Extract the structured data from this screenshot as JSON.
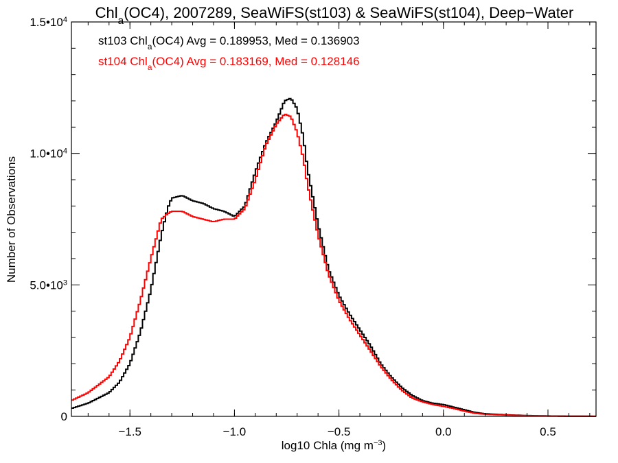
{
  "chart_data": {
    "type": "histogram",
    "title": {
      "pre": "Chl",
      "sub": "a",
      "post": "(OC4), 2007289, SeaWiFS(st103) & SeaWiFS(st104), Deep−Water"
    },
    "xlabel": {
      "text": "log10 Chla (mg m",
      "sup": "−3",
      "close": ")"
    },
    "ylabel": "Number of Observations",
    "xlim": [
      -1.78,
      0.73
    ],
    "ylim": [
      0,
      15000
    ],
    "x_ticks": [
      {
        "value": -1.5,
        "label": "−1.5"
      },
      {
        "value": -1.0,
        "label": "−1.0"
      },
      {
        "value": -0.5,
        "label": "−0.5"
      },
      {
        "value": 0.0,
        "label": "0.0"
      },
      {
        "value": 0.5,
        "label": "0.5"
      }
    ],
    "y_ticks": [
      {
        "value": 0,
        "label": "0",
        "exp": ""
      },
      {
        "value": 5000,
        "label": "5.0•10",
        "exp": "3"
      },
      {
        "value": 10000,
        "label": "1.0•10",
        "exp": "4"
      },
      {
        "value": 15000,
        "label": "1.5•10",
        "exp": "4"
      }
    ],
    "series": [
      {
        "name": "st103",
        "legend": {
          "pre": "st103 Chl",
          "sub": "a",
          "post": "(OC4) Avg = 0.189953, Med = 0.136903"
        },
        "color": "#000000",
        "x": [
          -1.78,
          -1.7,
          -1.6,
          -1.55,
          -1.5,
          -1.45,
          -1.4,
          -1.35,
          -1.32,
          -1.3,
          -1.25,
          -1.2,
          -1.15,
          -1.1,
          -1.05,
          -1.0,
          -0.95,
          -0.9,
          -0.85,
          -0.8,
          -0.76,
          -0.73,
          -0.7,
          -0.67,
          -0.65,
          -0.6,
          -0.55,
          -0.5,
          -0.45,
          -0.4,
          -0.35,
          -0.3,
          -0.25,
          -0.2,
          -0.15,
          -0.1,
          -0.05,
          0.0,
          0.05,
          0.1,
          0.15,
          0.2,
          0.3,
          0.4,
          0.5,
          0.6,
          0.73
        ],
        "y": [
          300,
          500,
          900,
          1300,
          2000,
          3200,
          4800,
          6900,
          7900,
          8300,
          8400,
          8200,
          8100,
          7900,
          7800,
          7600,
          8000,
          9300,
          10400,
          11200,
          12000,
          12100,
          11700,
          10600,
          9400,
          7300,
          5600,
          4600,
          3900,
          3300,
          2700,
          2000,
          1500,
          1100,
          800,
          600,
          500,
          450,
          350,
          250,
          150,
          100,
          60,
          30,
          15,
          8,
          3
        ]
      },
      {
        "name": "st104",
        "legend": {
          "pre": "st104 Chl",
          "sub": "a",
          "post": "(OC4) Avg = 0.183169, Med = 0.128146"
        },
        "color": "#ff0000",
        "x": [
          -1.78,
          -1.7,
          -1.6,
          -1.55,
          -1.5,
          -1.45,
          -1.4,
          -1.35,
          -1.32,
          -1.3,
          -1.25,
          -1.2,
          -1.15,
          -1.1,
          -1.05,
          -1.0,
          -0.95,
          -0.9,
          -0.85,
          -0.8,
          -0.76,
          -0.73,
          -0.7,
          -0.67,
          -0.65,
          -0.6,
          -0.55,
          -0.5,
          -0.45,
          -0.4,
          -0.35,
          -0.3,
          -0.25,
          -0.2,
          -0.15,
          -0.1,
          -0.05,
          0.0,
          0.05,
          0.1,
          0.15,
          0.2,
          0.3,
          0.4,
          0.5,
          0.6,
          0.73
        ],
        "y": [
          600,
          900,
          1500,
          2100,
          3000,
          4400,
          6000,
          7500,
          7700,
          7800,
          7800,
          7600,
          7500,
          7400,
          7500,
          7500,
          7900,
          9000,
          10300,
          11100,
          11500,
          11400,
          10800,
          9800,
          8800,
          6900,
          5400,
          4400,
          3700,
          3100,
          2500,
          1900,
          1400,
          1000,
          700,
          550,
          450,
          380,
          300,
          200,
          120,
          80,
          50,
          25,
          12,
          6,
          2
        ]
      }
    ],
    "legend_position": "top-left"
  }
}
